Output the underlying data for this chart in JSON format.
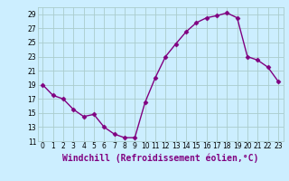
{
  "x": [
    0,
    1,
    2,
    3,
    4,
    5,
    6,
    7,
    8,
    9,
    10,
    11,
    12,
    13,
    14,
    15,
    16,
    17,
    18,
    19,
    20,
    21,
    22,
    23
  ],
  "y": [
    19,
    17.5,
    17,
    15.5,
    14.5,
    14.8,
    13,
    12,
    11.5,
    11.5,
    16.5,
    20,
    23,
    24.8,
    26.5,
    27.8,
    28.5,
    28.8,
    29.2,
    28.5,
    23,
    22.5,
    21.5,
    19.5
  ],
  "line_color": "#800080",
  "marker": "D",
  "marker_size": 2.5,
  "bg_color": "#cceeff",
  "grid_color": "#aacccc",
  "xlabel": "Windchill (Refroidissement éolien,°C)",
  "ylim": [
    11,
    30
  ],
  "xlim": [
    -0.5,
    23.5
  ],
  "yticks": [
    11,
    13,
    15,
    17,
    19,
    21,
    23,
    25,
    27,
    29
  ],
  "xticks": [
    0,
    1,
    2,
    3,
    4,
    5,
    6,
    7,
    8,
    9,
    10,
    11,
    12,
    13,
    14,
    15,
    16,
    17,
    18,
    19,
    20,
    21,
    22,
    23
  ],
  "tick_fontsize": 5.5,
  "xlabel_fontsize": 7.0,
  "line_width": 1.0
}
